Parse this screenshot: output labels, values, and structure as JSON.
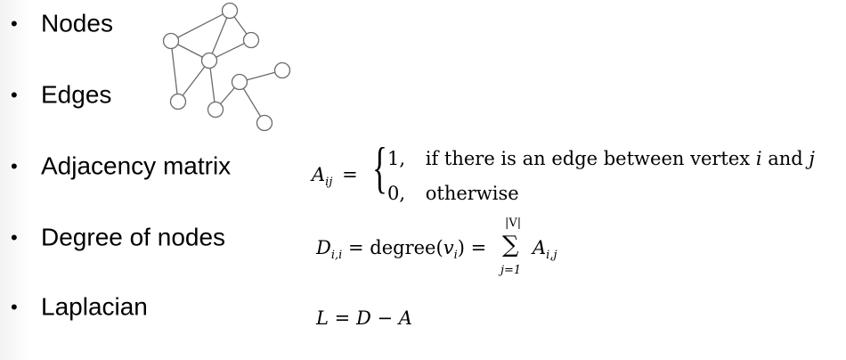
{
  "bullets": [
    {
      "marker": "•",
      "label": "Nodes"
    },
    {
      "marker": "•",
      "label": "Edges"
    },
    {
      "marker": "•",
      "label": "Adjacency matrix"
    },
    {
      "marker": "•",
      "label": "Degree of nodes"
    },
    {
      "marker": "•",
      "label": "Laplacian"
    }
  ],
  "adjacency": {
    "lhs_var": "A",
    "lhs_sub": "ij",
    "equals": "=",
    "case1_value": "1,",
    "case1_text": "if there is an edge between vertex",
    "case1_i": "i",
    "case1_and": "and",
    "case1_j": "j",
    "case2_value": "0,",
    "case2_text": "otherwise"
  },
  "degree": {
    "lhs_var": "D",
    "lhs_sub": "i,i",
    "equals1": "=",
    "func": "degree(",
    "func_var": "v",
    "func_sub": "i",
    "func_close": ")",
    "equals2": "=",
    "sum_sign": "∑",
    "sum_upper": "|V|",
    "sum_lower": "j=1",
    "term_var": "A",
    "term_sub": "i,j"
  },
  "laplacian": {
    "lhs": "L",
    "equals": "=",
    "d": "D",
    "minus": "−",
    "a": "A"
  },
  "graph": {
    "node_color": "#ffffff",
    "stroke_color": "#6b6b6b"
  }
}
